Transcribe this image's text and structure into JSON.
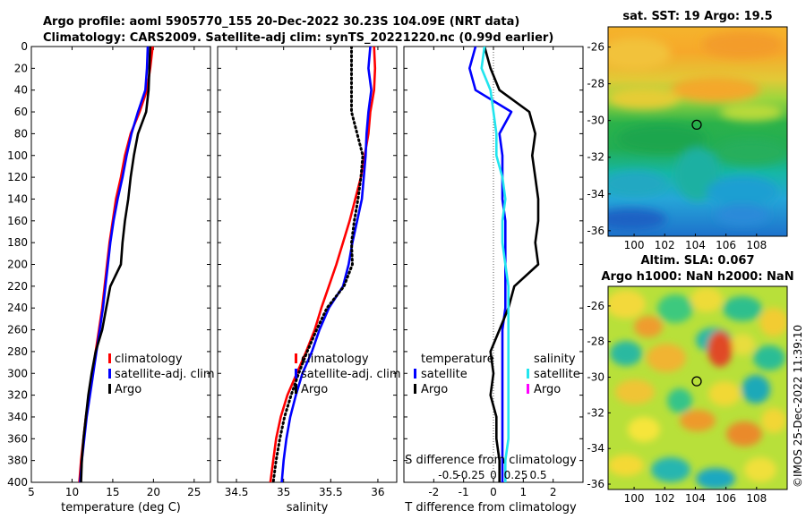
{
  "header": {
    "line1": "Argo profile: aoml 5905770_155 20-Dec-2022 30.23S 104.09E (NRT data)",
    "line2": "Climatology: CARS2009. Satellite-adj clim: synTS_20221220.nc (0.99d earlier)"
  },
  "colors": {
    "climatology": "#ff0000",
    "satellite": "#0000ff",
    "argo": "#000000",
    "salinity_satellite": "#22e5ee",
    "salinity_argo": "#ff00ff"
  },
  "chart_data": [
    {
      "type": "line",
      "id": "temperature_profile",
      "xlabel": "temperature (deg C)",
      "ylabel": "",
      "xlim": [
        5,
        27
      ],
      "ylim": [
        400,
        0
      ],
      "xticks": [
        5,
        10,
        15,
        20,
        25
      ],
      "yticks": [
        0,
        20,
        40,
        60,
        80,
        100,
        120,
        140,
        160,
        180,
        200,
        220,
        240,
        260,
        280,
        300,
        320,
        340,
        360,
        380,
        400
      ],
      "legend": [
        "climatology",
        "satellite-adj. clim",
        "Argo"
      ],
      "series": [
        {
          "name": "climatology",
          "color_key": "climatology",
          "style": "solid",
          "x": [
            19.9,
            19.6,
            19.2,
            18.3,
            17.2,
            16.5,
            16.0,
            15.4,
            15.0,
            14.6,
            14.3,
            14.0,
            13.7,
            13.3,
            12.9,
            12.5,
            12.1,
            11.7,
            11.4,
            11.1,
            10.9
          ],
          "y": [
            0,
            20,
            40,
            60,
            80,
            100,
            120,
            140,
            160,
            180,
            200,
            220,
            240,
            260,
            280,
            300,
            320,
            340,
            360,
            380,
            400
          ]
        },
        {
          "name": "satellite-adj. clim",
          "color_key": "satellite",
          "style": "solid",
          "x": [
            19.3,
            19.2,
            19.0,
            18.1,
            17.3,
            16.7,
            16.2,
            15.6,
            15.1,
            14.7,
            14.4,
            14.1,
            13.8,
            13.4,
            13.0,
            12.6,
            12.2,
            11.8,
            11.5,
            11.2,
            11.0
          ],
          "y": [
            0,
            20,
            40,
            60,
            80,
            100,
            120,
            140,
            160,
            180,
            200,
            220,
            240,
            260,
            280,
            300,
            320,
            340,
            360,
            380,
            400
          ]
        },
        {
          "name": "Argo",
          "color_key": "argo",
          "style": "solid",
          "x": [
            19.6,
            19.5,
            19.4,
            19.1,
            18.1,
            17.6,
            17.2,
            16.9,
            16.5,
            16.2,
            16.0,
            14.7,
            14.2,
            13.7,
            12.9,
            12.4,
            12.0,
            11.7,
            11.4,
            11.2,
            11.1
          ],
          "y": [
            0,
            20,
            40,
            60,
            80,
            100,
            120,
            140,
            160,
            180,
            200,
            220,
            240,
            260,
            280,
            300,
            320,
            340,
            360,
            380,
            400
          ]
        }
      ]
    },
    {
      "type": "line",
      "id": "salinity_profile",
      "xlabel": "salinity",
      "ylabel": "",
      "xlim": [
        34.3,
        36.2
      ],
      "ylim": [
        400,
        0
      ],
      "xticks": [
        34.5,
        35,
        35.5,
        36
      ],
      "legend": [
        "climatology",
        "satellite-adj. clim",
        "Argo"
      ],
      "series": [
        {
          "name": "climatology",
          "color_key": "climatology",
          "style": "solid",
          "x": [
            35.96,
            35.97,
            35.96,
            35.92,
            35.9,
            35.86,
            35.82,
            35.76,
            35.7,
            35.63,
            35.56,
            35.48,
            35.4,
            35.33,
            35.24,
            35.14,
            35.04,
            34.97,
            34.92,
            34.89,
            34.86
          ],
          "y": [
            0,
            20,
            40,
            60,
            80,
            100,
            120,
            140,
            160,
            180,
            200,
            220,
            240,
            260,
            280,
            300,
            320,
            340,
            360,
            380,
            400
          ]
        },
        {
          "name": "satellite-adj. clim",
          "color_key": "satellite",
          "style": "solid",
          "x": [
            35.92,
            35.9,
            35.93,
            35.9,
            35.88,
            35.87,
            35.85,
            35.83,
            35.78,
            35.73,
            35.69,
            35.63,
            35.48,
            35.38,
            35.3,
            35.2,
            35.13,
            35.07,
            35.03,
            35.0,
            34.98
          ],
          "y": [
            0,
            20,
            40,
            60,
            80,
            100,
            120,
            140,
            160,
            180,
            200,
            220,
            240,
            260,
            280,
            300,
            320,
            340,
            360,
            380,
            400
          ]
        },
        {
          "name": "Argo",
          "color_key": "argo",
          "style": "dotted",
          "x": [
            35.72,
            35.72,
            35.72,
            35.72,
            35.78,
            35.84,
            35.82,
            35.79,
            35.75,
            35.72,
            35.73,
            35.64,
            35.46,
            35.35,
            35.25,
            35.16,
            35.08,
            35.01,
            34.96,
            34.92,
            34.89
          ],
          "y": [
            0,
            20,
            40,
            60,
            80,
            100,
            120,
            140,
            160,
            180,
            200,
            220,
            240,
            260,
            280,
            300,
            320,
            340,
            360,
            380,
            400
          ]
        }
      ]
    },
    {
      "type": "line",
      "id": "difference_profile",
      "xlabel": "T difference from climatology",
      "top_xlabel": "S difference from climatology",
      "xlim": [
        -3,
        3
      ],
      "ylim": [
        400,
        0
      ],
      "xticks": [
        -2,
        -1,
        0,
        1,
        2
      ],
      "top_ticks": [
        {
          "label": "-0.5",
          "t": -1.5
        },
        {
          "label": "-0.25",
          "t": -0.75
        },
        {
          "label": "0",
          "t": 0
        },
        {
          "label": "0.25",
          "t": 0.75
        },
        {
          "label": "0.5",
          "t": 1.5
        }
      ],
      "legend_temperature_title": "temperature",
      "legend_salinity_title": "salinity",
      "legend_temperature": [
        "satellite",
        "Argo"
      ],
      "legend_salinity": [
        "satellite",
        "Argo"
      ],
      "series": [
        {
          "name": "temperature satellite",
          "color_key": "satellite",
          "style": "solid",
          "x": [
            -0.6,
            -0.8,
            -0.6,
            0.6,
            0.2,
            0.3,
            0.3,
            0.3,
            0.4,
            0.4,
            0.4,
            0.4,
            0.4,
            0.3,
            0.3,
            0.3,
            0.3,
            0.3,
            0.3,
            0.3,
            0.3
          ],
          "y": [
            0,
            20,
            40,
            60,
            80,
            100,
            120,
            140,
            160,
            180,
            200,
            220,
            240,
            260,
            280,
            300,
            320,
            340,
            360,
            380,
            400
          ]
        },
        {
          "name": "temperature Argo",
          "color_key": "argo",
          "style": "solid",
          "x": [
            -0.3,
            -0.1,
            0.2,
            1.2,
            1.4,
            1.3,
            1.4,
            1.5,
            1.5,
            1.4,
            1.5,
            0.7,
            0.5,
            0.2,
            -0.1,
            0.0,
            -0.1,
            0.1,
            0.1,
            0.2,
            0.2
          ],
          "y": [
            0,
            20,
            40,
            60,
            80,
            100,
            120,
            140,
            160,
            180,
            200,
            220,
            240,
            260,
            280,
            300,
            320,
            340,
            360,
            380,
            400
          ]
        },
        {
          "name": "salinity satellite",
          "color_key": "salinity_satellite",
          "style": "solid",
          "x": [
            -0.3,
            -0.4,
            -0.1,
            0.0,
            0.1,
            0.1,
            0.3,
            0.4,
            0.3,
            0.3,
            0.4,
            0.5,
            0.5,
            0.5,
            0.5,
            0.5,
            0.5,
            0.5,
            0.5,
            0.4,
            0.4
          ],
          "y": [
            0,
            20,
            40,
            60,
            80,
            100,
            120,
            140,
            160,
            180,
            200,
            220,
            240,
            260,
            280,
            300,
            320,
            340,
            360,
            380,
            400
          ]
        }
      ]
    },
    {
      "type": "heatmap",
      "id": "sst_map",
      "title": "sat. SST: 19 Argo: 19.5",
      "xlim": [
        98.3,
        110
      ],
      "ylim": [
        -36.3,
        -24.9
      ],
      "xticks": [
        100,
        102,
        104,
        106,
        108
      ],
      "yticks": [
        -26,
        -28,
        -30,
        -32,
        -34,
        -36
      ],
      "marker": {
        "lon": 104.09,
        "lat": -30.23
      }
    },
    {
      "type": "heatmap",
      "id": "sla_map",
      "title_line1": "Altim. SLA: 0.067",
      "title_line2": "Argo h1000: NaN h2000: NaN",
      "xlim": [
        98.3,
        110
      ],
      "ylim": [
        -36.3,
        -24.9
      ],
      "xticks": [
        100,
        102,
        104,
        106,
        108
      ],
      "yticks": [
        -26,
        -28,
        -30,
        -32,
        -34,
        -36
      ],
      "marker": {
        "lon": 104.09,
        "lat": -30.23
      }
    }
  ],
  "watermark": "©IMOS 25-Dec-2022 11:39:10"
}
